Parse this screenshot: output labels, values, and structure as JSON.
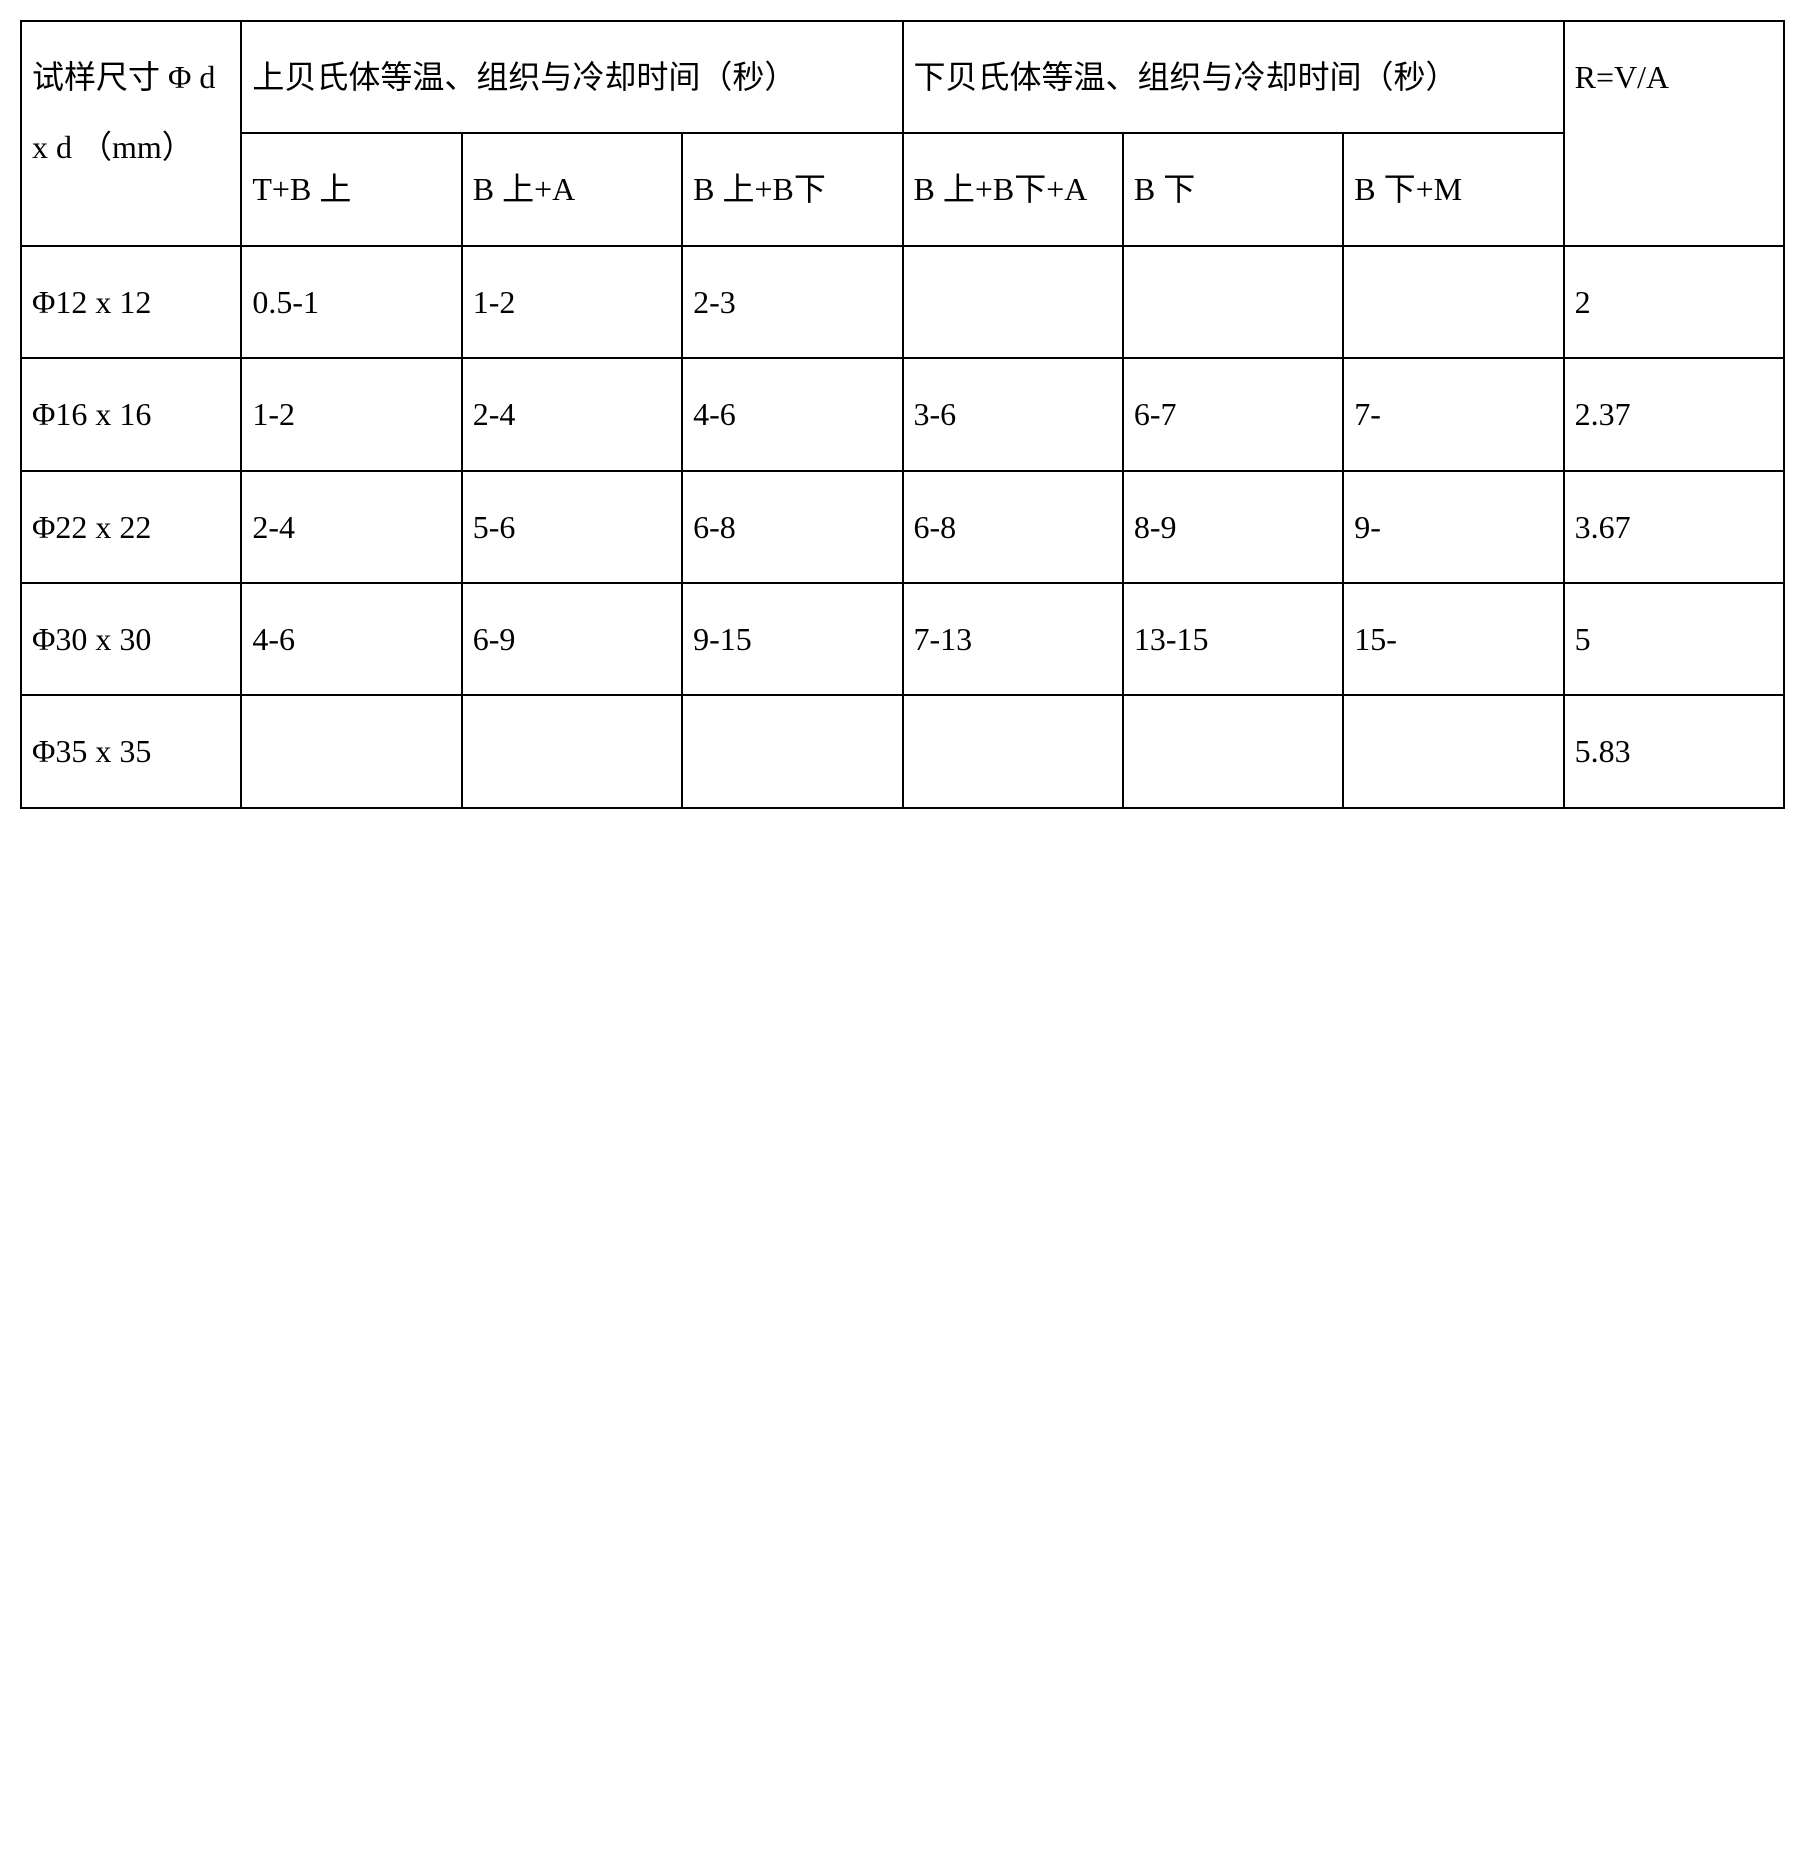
{
  "table": {
    "header": {
      "size_label": "试样尺寸 Φ d x   d （mm）",
      "upper_group": "上贝氏体等温、组织与冷却时间（秒）",
      "lower_group": "下贝氏体等温、组织与冷却时间（秒）",
      "r_label": "R=V/A",
      "sub": {
        "c1": "T+B 上",
        "c2": "B 上+A",
        "c3": "B 上+B下",
        "c4": "B 上+B下+A",
        "c5": "B 下",
        "c6": "B 下+M"
      }
    },
    "rows": [
      {
        "size": "Φ12 x 12",
        "c1": "0.5-1",
        "c2": "1-2",
        "c3": "2-3",
        "c4": "",
        "c5": "",
        "c6": "",
        "r": "2"
      },
      {
        "size": "Φ16 x 16",
        "c1": "1-2",
        "c2": "2-4",
        "c3": "4-6",
        "c4": "3-6",
        "c5": "6-7",
        "c6": "7-",
        "r": "2.37"
      },
      {
        "size": "Φ22 x 22",
        "c1": "2-4",
        "c2": "5-6",
        "c3": "6-8",
        "c4": "6-8",
        "c5": "8-9",
        "c6": "9-",
        "r": "3.67"
      },
      {
        "size": "Φ30 x 30",
        "c1": "4-6",
        "c2": "6-9",
        "c3": "9-15",
        "c4": "7-13",
        "c5": "13-15",
        "c6": "15-",
        "r": "5"
      },
      {
        "size": "Φ35 x 35",
        "c1": "",
        "c2": "",
        "c3": "",
        "c4": "",
        "c5": "",
        "c6": "",
        "r": "5.83"
      }
    ]
  },
  "style": {
    "border_color": "#000000",
    "background": "#ffffff",
    "font_size_pt": 24,
    "line_height": 2.2
  }
}
